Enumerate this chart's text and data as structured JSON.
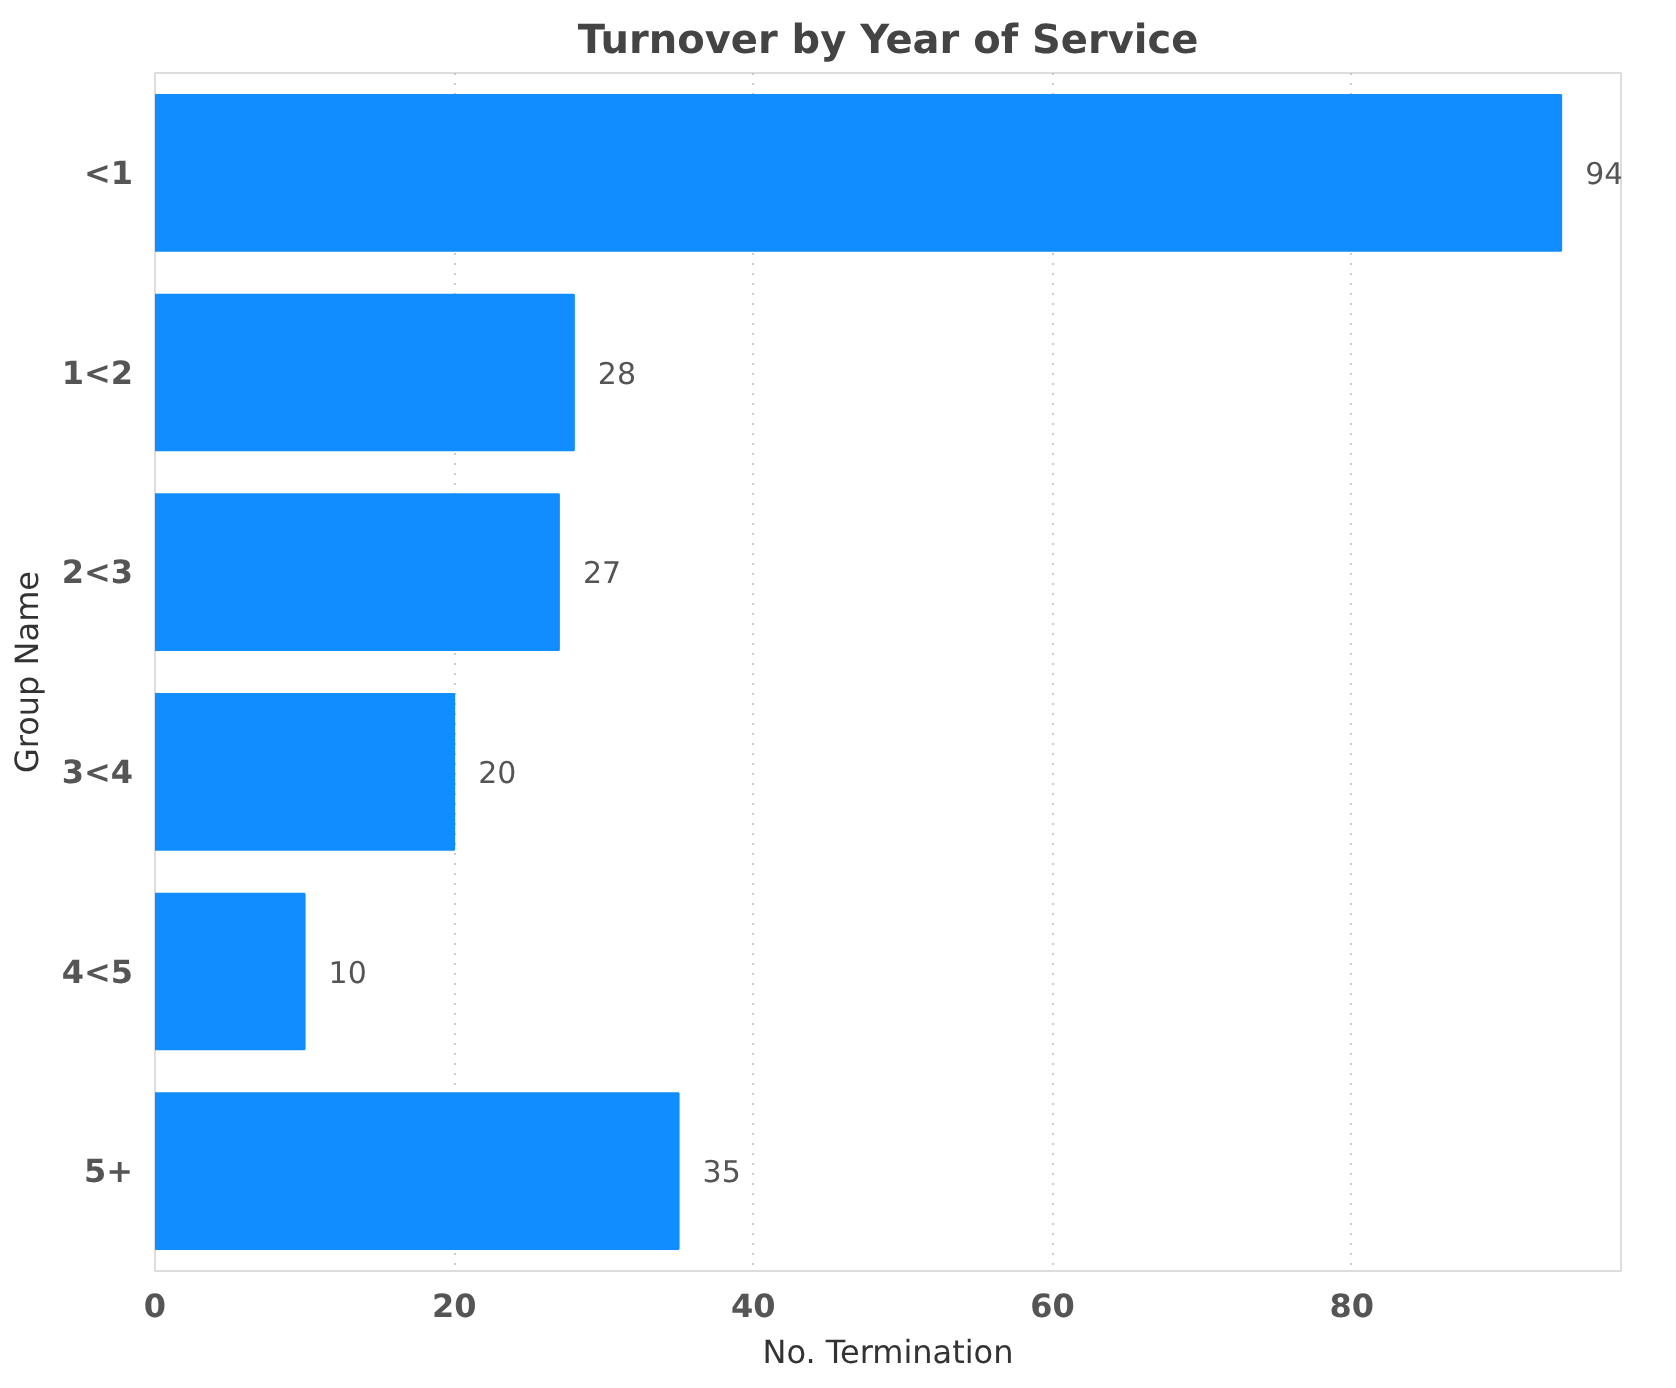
{
  "chart_data": {
    "type": "bar",
    "orientation": "horizontal",
    "title": "Turnover by Year of Service",
    "xlabel": "No. Termination",
    "ylabel": "Group Name",
    "categories": [
      "<1",
      "1<2",
      "2<3",
      "3<4",
      "4<5",
      "5+"
    ],
    "values": [
      94,
      28,
      27,
      20,
      10,
      35
    ],
    "color": "#118dff",
    "xlim": [
      0,
      98
    ],
    "xticks": [
      0,
      20,
      40,
      60,
      80
    ],
    "grid": "x",
    "data_labels": true
  }
}
